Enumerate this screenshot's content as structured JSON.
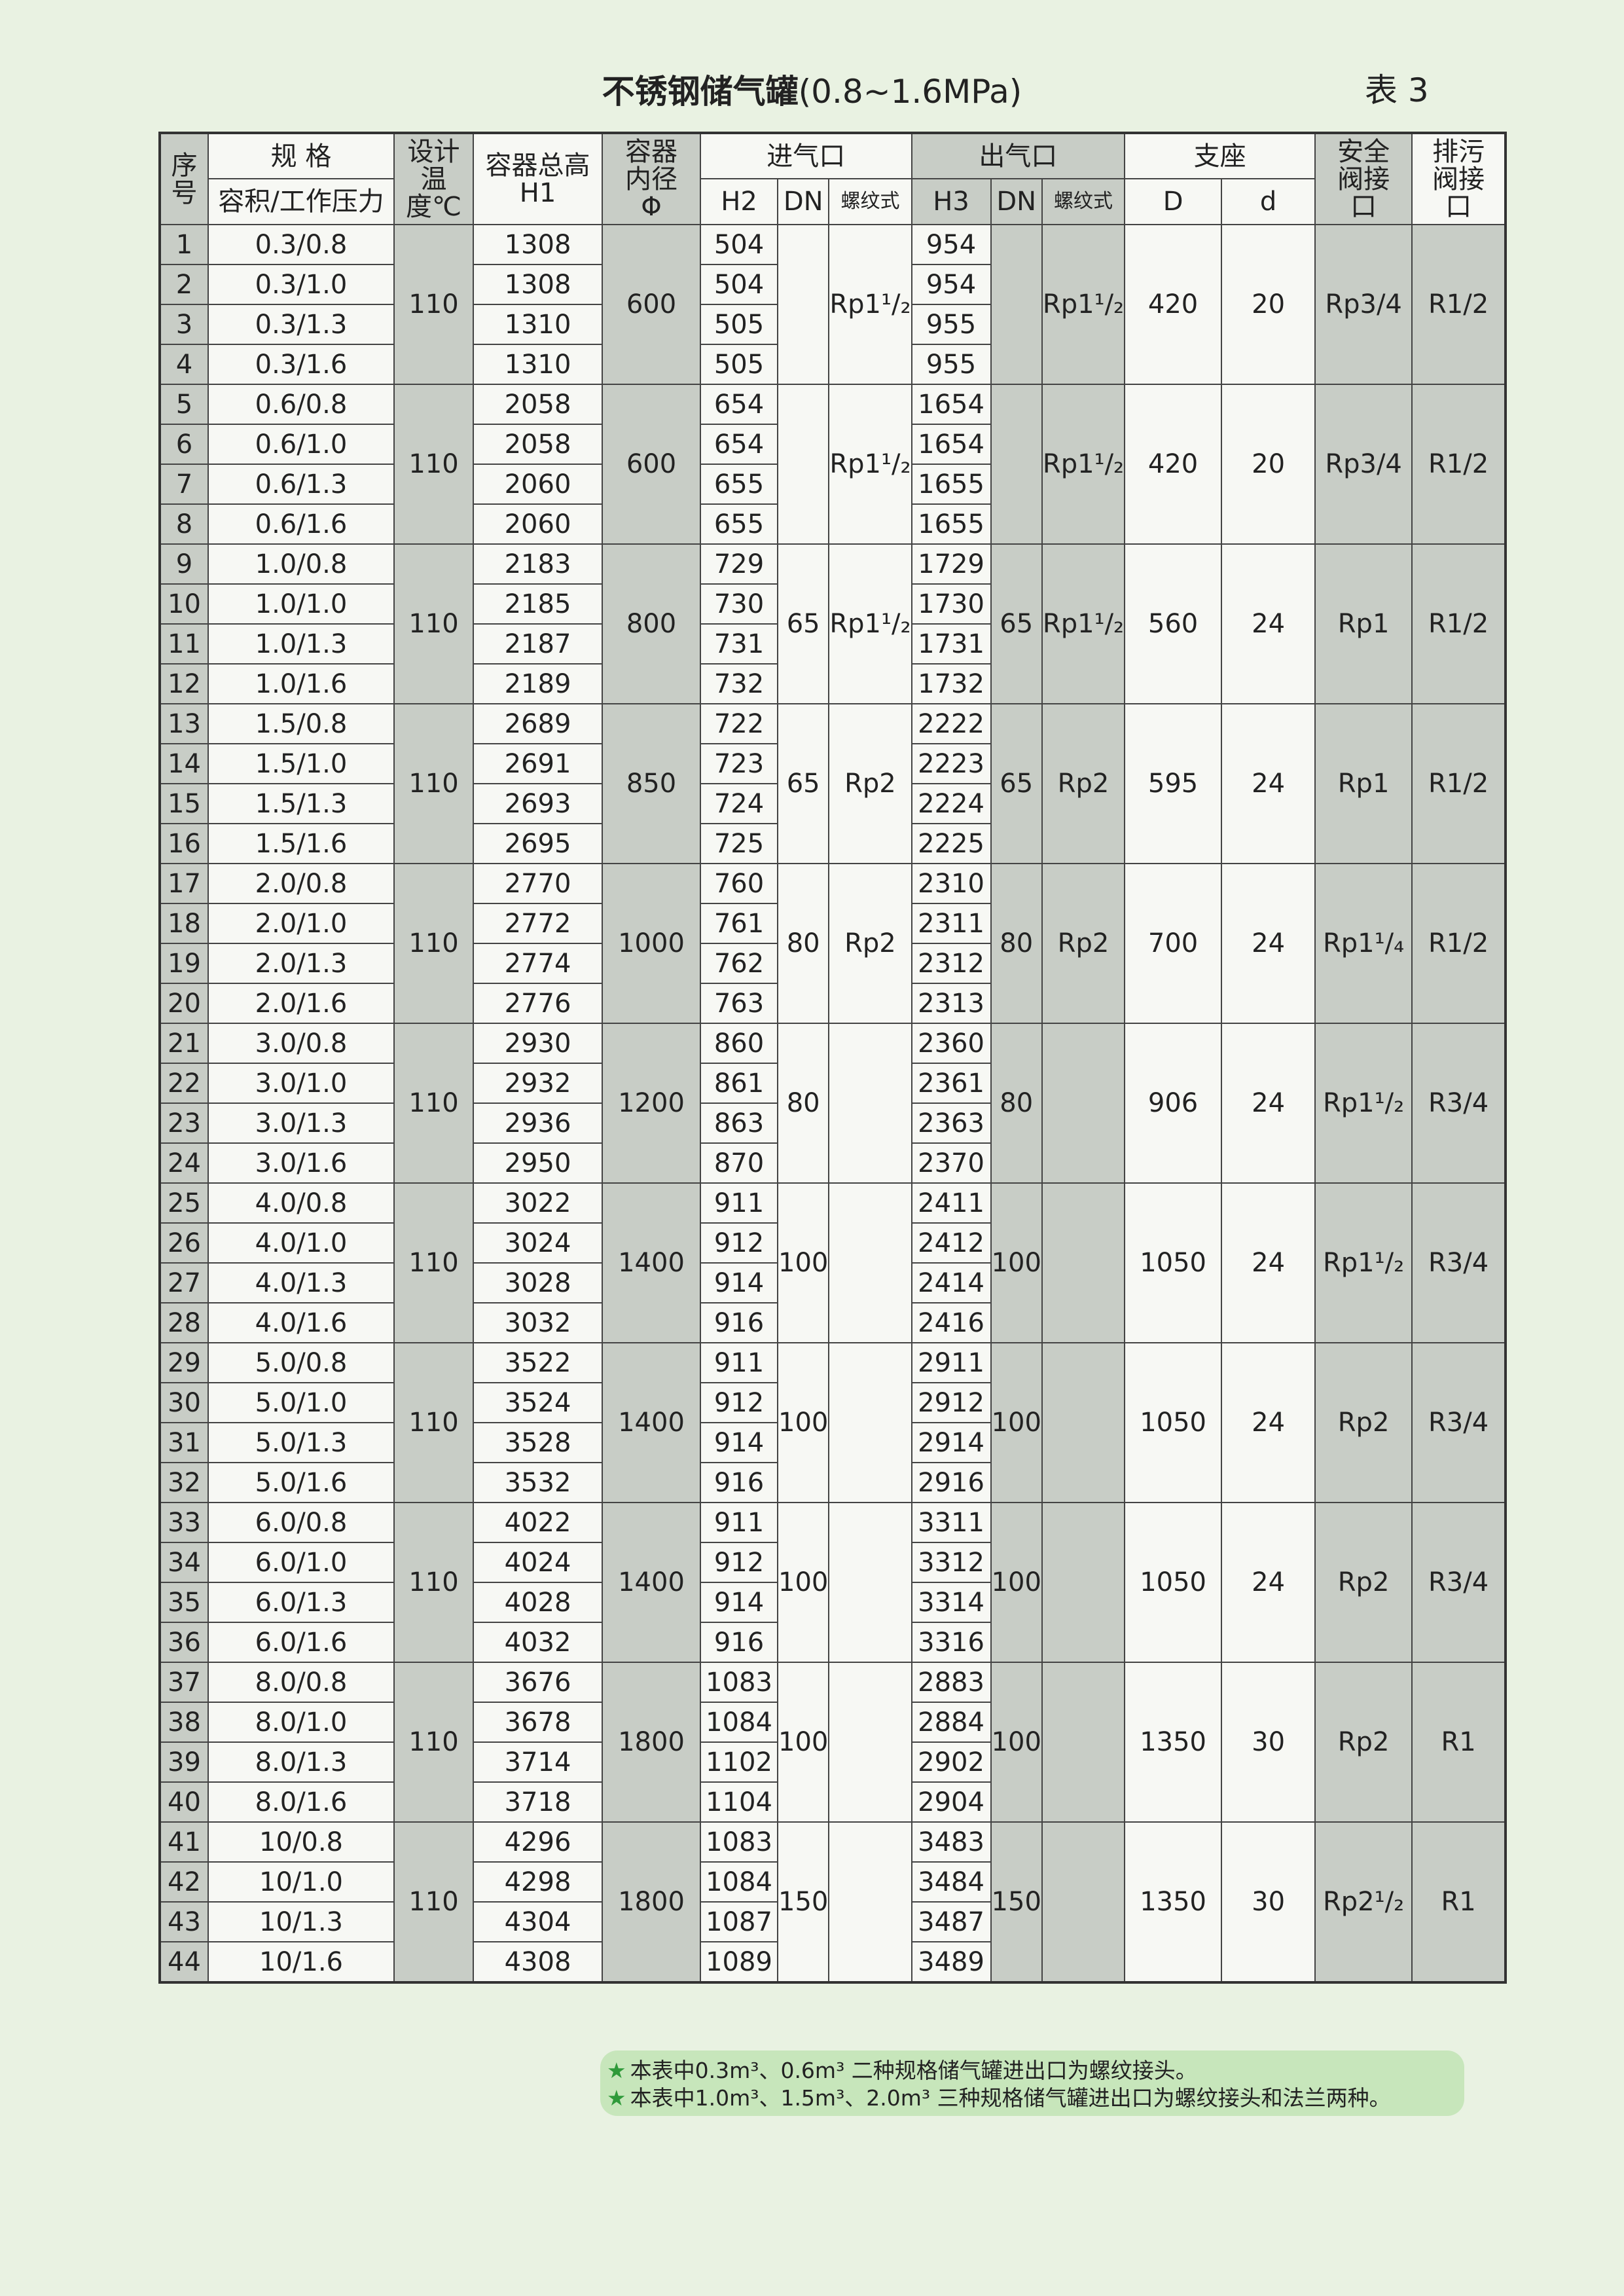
{
  "header": {
    "title": "不锈钢储气罐",
    "title_range": "(0.8~1.6MPa)",
    "table_no": "表 3"
  },
  "table": {
    "head": {
      "no": "序号",
      "spec": "规 格",
      "spec_sub": "容积/工作压力",
      "temperature": "设计温度℃",
      "height": "容器总高",
      "height_sym": "H1",
      "diameter": "容器内径",
      "diameter_sym": "Φ",
      "inlet": "进气口",
      "outlet": "出气口",
      "support": "支座",
      "safety_valve": "安全阀接口",
      "drain_valve": "排污阀接口",
      "h2": "H2",
      "dn_in": "DN",
      "thread_in": "螺纹式",
      "h3": "H3",
      "dn_out": "DN",
      "thread_out": "螺纹式",
      "support_D": "D",
      "support_d": "d"
    },
    "groups": [
      {
        "temperature": 110,
        "diameter": 600,
        "inlet_thread": "Rp1¹/₂",
        "outlet_thread": "Rp1¹/₂",
        "support_D": 420,
        "support_d": 20,
        "safety_valve": "Rp3/4",
        "drain_valve": "R1/2",
        "rows": [
          {
            "no": 1,
            "spec": "0.3/0.8",
            "H1": 1308,
            "H2": 504,
            "H3": 954
          },
          {
            "no": 2,
            "spec": "0.3/1.0",
            "H1": 1308,
            "H2": 504,
            "H3": 954
          },
          {
            "no": 3,
            "spec": "0.3/1.3",
            "H1": 1310,
            "H2": 505,
            "H3": 955
          },
          {
            "no": 4,
            "spec": "0.3/1.6",
            "H1": 1310,
            "H2": 505,
            "H3": 955
          }
        ]
      },
      {
        "temperature": 110,
        "diameter": 600,
        "inlet_thread": "Rp1¹/₂",
        "outlet_thread": "Rp1¹/₂",
        "support_D": 420,
        "support_d": 20,
        "safety_valve": "Rp3/4",
        "drain_valve": "R1/2",
        "rows": [
          {
            "no": 5,
            "spec": "0.6/0.8",
            "H1": 2058,
            "H2": 654,
            "H3": 1654
          },
          {
            "no": 6,
            "spec": "0.6/1.0",
            "H1": 2058,
            "H2": 654,
            "H3": 1654
          },
          {
            "no": 7,
            "spec": "0.6/1.3",
            "H1": 2060,
            "H2": 655,
            "H3": 1655
          },
          {
            "no": 8,
            "spec": "0.6/1.6",
            "H1": 2060,
            "H2": 655,
            "H3": 1655
          }
        ]
      },
      {
        "temperature": 110,
        "diameter": 800,
        "inlet_dn": 65,
        "inlet_thread": "Rp1¹/₂",
        "outlet_dn": 65,
        "outlet_thread": "Rp1¹/₂",
        "support_D": 560,
        "support_d": 24,
        "safety_valve": "Rp1",
        "drain_valve": "R1/2",
        "rows": [
          {
            "no": 9,
            "spec": "1.0/0.8",
            "H1": 2183,
            "H2": 729,
            "H3": 1729
          },
          {
            "no": 10,
            "spec": "1.0/1.0",
            "H1": 2185,
            "H2": 730,
            "H3": 1730
          },
          {
            "no": 11,
            "spec": "1.0/1.3",
            "H1": 2187,
            "H2": 731,
            "H3": 1731
          },
          {
            "no": 12,
            "spec": "1.0/1.6",
            "H1": 2189,
            "H2": 732,
            "H3": 1732
          }
        ]
      },
      {
        "temperature": 110,
        "diameter": 850,
        "inlet_dn": 65,
        "inlet_thread": "Rp2",
        "outlet_dn": 65,
        "outlet_thread": "Rp2",
        "support_D": 595,
        "support_d": 24,
        "safety_valve": "Rp1",
        "drain_valve": "R1/2",
        "rows": [
          {
            "no": 13,
            "spec": "1.5/0.8",
            "H1": 2689,
            "H2": 722,
            "H3": 2222
          },
          {
            "no": 14,
            "spec": "1.5/1.0",
            "H1": 2691,
            "H2": 723,
            "H3": 2223
          },
          {
            "no": 15,
            "spec": "1.5/1.3",
            "H1": 2693,
            "H2": 724,
            "H3": 2224
          },
          {
            "no": 16,
            "spec": "1.5/1.6",
            "H1": 2695,
            "H2": 725,
            "H3": 2225
          }
        ]
      },
      {
        "temperature": 110,
        "diameter": 1000,
        "inlet_dn": 80,
        "inlet_thread": "Rp2",
        "outlet_dn": 80,
        "outlet_thread": "Rp2",
        "support_D": 700,
        "support_d": 24,
        "safety_valve": "Rp1¹/₄",
        "drain_valve": "R1/2",
        "rows": [
          {
            "no": 17,
            "spec": "2.0/0.8",
            "H1": 2770,
            "H2": 760,
            "H3": 2310
          },
          {
            "no": 18,
            "spec": "2.0/1.0",
            "H1": 2772,
            "H2": 761,
            "H3": 2311
          },
          {
            "no": 19,
            "spec": "2.0/1.3",
            "H1": 2774,
            "H2": 762,
            "H3": 2312
          },
          {
            "no": 20,
            "spec": "2.0/1.6",
            "H1": 2776,
            "H2": 763,
            "H3": 2313
          }
        ]
      },
      {
        "temperature": 110,
        "diameter": 1200,
        "inlet_dn": 80,
        "outlet_dn": 80,
        "support_D": 906,
        "support_d": 24,
        "safety_valve": "Rp1¹/₂",
        "drain_valve": "R3/4",
        "rows": [
          {
            "no": 21,
            "spec": "3.0/0.8",
            "H1": 2930,
            "H2": 860,
            "H3": 2360
          },
          {
            "no": 22,
            "spec": "3.0/1.0",
            "H1": 2932,
            "H2": 861,
            "H3": 2361
          },
          {
            "no": 23,
            "spec": "3.0/1.3",
            "H1": 2936,
            "H2": 863,
            "H3": 2363
          },
          {
            "no": 24,
            "spec": "3.0/1.6",
            "H1": 2950,
            "H2": 870,
            "H3": 2370
          }
        ]
      },
      {
        "temperature": 110,
        "diameter": 1400,
        "inlet_dn": 100,
        "outlet_dn": 100,
        "support_D": 1050,
        "support_d": 24,
        "safety_valve": "Rp1¹/₂",
        "drain_valve": "R3/4",
        "rows": [
          {
            "no": 25,
            "spec": "4.0/0.8",
            "H1": 3022,
            "H2": 911,
            "H3": 2411
          },
          {
            "no": 26,
            "spec": "4.0/1.0",
            "H1": 3024,
            "H2": 912,
            "H3": 2412
          },
          {
            "no": 27,
            "spec": "4.0/1.3",
            "H1": 3028,
            "H2": 914,
            "H3": 2414
          },
          {
            "no": 28,
            "spec": "4.0/1.6",
            "H1": 3032,
            "H2": 916,
            "H3": 2416
          }
        ]
      },
      {
        "temperature": 110,
        "diameter": 1400,
        "inlet_dn": 100,
        "outlet_dn": 100,
        "support_D": 1050,
        "support_d": 24,
        "safety_valve": "Rp2",
        "drain_valve": "R3/4",
        "rows": [
          {
            "no": 29,
            "spec": "5.0/0.8",
            "H1": 3522,
            "H2": 911,
            "H3": 2911
          },
          {
            "no": 30,
            "spec": "5.0/1.0",
            "H1": 3524,
            "H2": 912,
            "H3": 2912
          },
          {
            "no": 31,
            "spec": "5.0/1.3",
            "H1": 3528,
            "H2": 914,
            "H3": 2914
          },
          {
            "no": 32,
            "spec": "5.0/1.6",
            "H1": 3532,
            "H2": 916,
            "H3": 2916
          }
        ]
      },
      {
        "temperature": 110,
        "diameter": 1400,
        "inlet_dn": 100,
        "outlet_dn": 100,
        "support_D": 1050,
        "support_d": 24,
        "safety_valve": "Rp2",
        "drain_valve": "R3/4",
        "rows": [
          {
            "no": 33,
            "spec": "6.0/0.8",
            "H1": 4022,
            "H2": 911,
            "H3": 3311
          },
          {
            "no": 34,
            "spec": "6.0/1.0",
            "H1": 4024,
            "H2": 912,
            "H3": 3312
          },
          {
            "no": 35,
            "spec": "6.0/1.3",
            "H1": 4028,
            "H2": 914,
            "H3": 3314
          },
          {
            "no": 36,
            "spec": "6.0/1.6",
            "H1": 4032,
            "H2": 916,
            "H3": 3316
          }
        ]
      },
      {
        "temperature": 110,
        "diameter": 1800,
        "inlet_dn": 100,
        "outlet_dn": 100,
        "support_D": 1350,
        "support_d": 30,
        "safety_valve": "Rp2",
        "drain_valve": "R1",
        "rows": [
          {
            "no": 37,
            "spec": "8.0/0.8",
            "H1": 3676,
            "H2": 1083,
            "H3": 2883
          },
          {
            "no": 38,
            "spec": "8.0/1.0",
            "H1": 3678,
            "H2": 1084,
            "H3": 2884
          },
          {
            "no": 39,
            "spec": "8.0/1.3",
            "H1": 3714,
            "H2": 1102,
            "H3": 2902
          },
          {
            "no": 40,
            "spec": "8.0/1.6",
            "H1": 3718,
            "H2": 1104,
            "H3": 2904
          }
        ]
      },
      {
        "temperature": 110,
        "diameter": 1800,
        "inlet_dn": 150,
        "outlet_dn": 150,
        "support_D": 1350,
        "support_d": 30,
        "safety_valve": "Rp2¹/₂",
        "drain_valve": "R1",
        "rows": [
          {
            "no": 41,
            "spec": "10/0.8",
            "H1": 4296,
            "H2": 1083,
            "H3": 3483
          },
          {
            "no": 42,
            "spec": "10/1.0",
            "H1": 4298,
            "H2": 1084,
            "H3": 3484
          },
          {
            "no": 43,
            "spec": "10/1.3",
            "H1": 4304,
            "H2": 1087,
            "H3": 3487
          },
          {
            "no": 44,
            "spec": "10/1.6",
            "H1": 4308,
            "H2": 1089,
            "H3": 3489
          }
        ]
      }
    ]
  },
  "notes": [
    "本表中0.3m³、0.6m³ 二种规格储气罐进出口为螺纹接头。",
    "本表中1.0m³、1.5m³、2.0m³ 三种规格储气罐进出口为螺纹接头和法兰两种。"
  ]
}
